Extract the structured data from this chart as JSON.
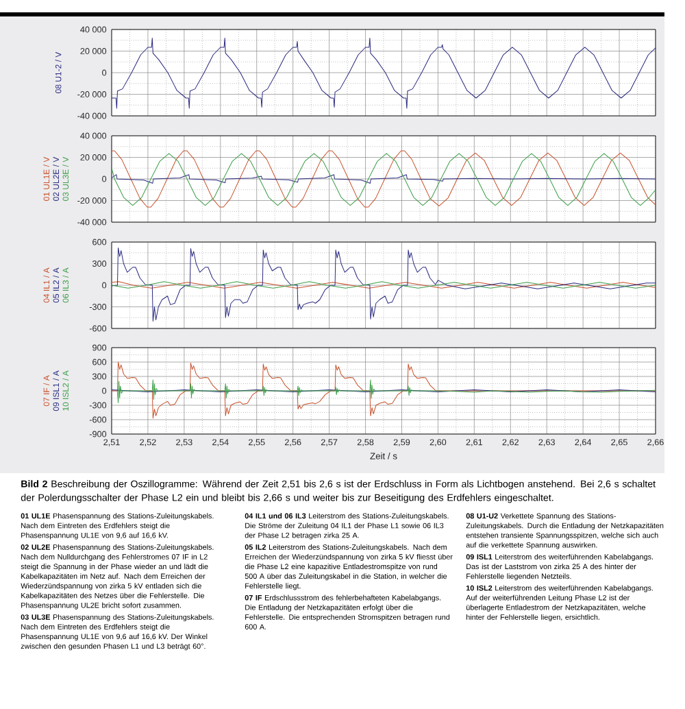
{
  "chart_data": [
    {
      "type": "line",
      "xlim": [
        2.51,
        2.66
      ],
      "ylim": [
        -40000,
        40000
      ],
      "tick_labels": "y",
      "grid": true,
      "xticks": [
        2.51,
        2.52,
        2.53,
        2.54,
        2.55,
        2.56,
        2.57,
        2.58,
        2.59,
        2.6,
        2.61,
        2.62,
        2.63,
        2.64,
        2.65,
        2.66
      ],
      "yticks": [
        {
          "value": -40000,
          "label": "-40 000"
        },
        {
          "value": -20000,
          "label": "-20 000"
        },
        0,
        {
          "value": 20000,
          "label": "20 000"
        },
        {
          "value": 40000,
          "label": "40 000"
        }
      ],
      "series": [
        {
          "name": "08 U1-2 / V",
          "color": "#2a2a80",
          "x": [
            2.51,
            2.5112,
            2.5114,
            2.5116,
            2.513,
            2.5155,
            2.518,
            2.52,
            2.521,
            2.5212,
            2.5214,
            2.523,
            2.5255,
            2.528,
            2.5305,
            2.5312,
            2.5314,
            2.5316,
            2.533,
            2.5355,
            2.538,
            2.54,
            2.541,
            2.5412,
            2.5414,
            2.543,
            2.5455,
            2.548,
            2.5505,
            2.5512,
            2.5514,
            2.5516,
            2.553,
            2.5555,
            2.558,
            2.56,
            2.561,
            2.5612,
            2.5614,
            2.563,
            2.5655,
            2.568,
            2.5705,
            2.5712,
            2.5714,
            2.5716,
            2.573,
            2.5755,
            2.578,
            2.58,
            2.581,
            2.5812,
            2.5814,
            2.583,
            2.5855,
            2.588,
            2.5905,
            2.5912,
            2.5914,
            2.5916,
            2.593,
            2.5955,
            2.598,
            2.6,
            2.601,
            2.6012,
            2.6014,
            2.603,
            2.6055,
            2.608,
            2.6105,
            2.613,
            2.6155,
            2.618,
            2.6205,
            2.623,
            2.6255,
            2.628,
            2.6305,
            2.633,
            2.6355,
            2.638,
            2.6405,
            2.643,
            2.6455,
            2.648,
            2.6505,
            2.653,
            2.6555,
            2.658,
            2.66
          ],
          "values": [
            -23500,
            -23500,
            -33000,
            -17000,
            -15000,
            0,
            16500,
            23500,
            23500,
            32000,
            18000,
            12000,
            0,
            -16500,
            -23500,
            -23500,
            -33000,
            -17000,
            -15000,
            0,
            16500,
            23500,
            23500,
            32000,
            18000,
            12000,
            0,
            -16500,
            -23500,
            -23500,
            -32000,
            -18000,
            -15000,
            0,
            16500,
            23500,
            23500,
            29000,
            20000,
            12000,
            0,
            -16500,
            -23500,
            -23500,
            -32000,
            -18000,
            -15000,
            0,
            16500,
            23500,
            23500,
            32000,
            18000,
            12000,
            0,
            -16500,
            -23500,
            -23500,
            -33000,
            -17000,
            -15000,
            0,
            16500,
            23500,
            23500,
            26000,
            22000,
            16500,
            0,
            -16500,
            -23500,
            -16500,
            0,
            16500,
            23500,
            16500,
            0,
            -16500,
            -23500,
            -16500,
            0,
            16500,
            23500,
            16500,
            0,
            -16500,
            -23500,
            -16500,
            0,
            16500,
            23000
          ]
        }
      ]
    },
    {
      "type": "line",
      "xlim": [
        2.51,
        2.66
      ],
      "ylim": [
        -40000,
        40000
      ],
      "tick_labels": "y",
      "grid": true,
      "xticks": [
        2.51,
        2.52,
        2.53,
        2.54,
        2.55,
        2.56,
        2.57,
        2.58,
        2.59,
        2.6,
        2.61,
        2.62,
        2.63,
        2.64,
        2.65,
        2.66
      ],
      "yticks": [
        {
          "value": -40000,
          "label": "-40 000"
        },
        {
          "value": -20000,
          "label": "-20 000"
        },
        0,
        {
          "value": 20000,
          "label": "20 000"
        },
        {
          "value": 40000,
          "label": "40 000"
        }
      ],
      "series": [
        {
          "name": "01 UL1E / V",
          "color": "#c8502a",
          "x": [
            2.51,
            2.5108,
            2.5128,
            2.5153,
            2.5178,
            2.5198,
            2.5208,
            2.5228,
            2.5253,
            2.5278,
            2.5298,
            2.5308,
            2.5328,
            2.5353,
            2.5378,
            2.5398,
            2.5408,
            2.5428,
            2.5453,
            2.5478,
            2.5498,
            2.5508,
            2.5528,
            2.5553,
            2.5578,
            2.5598,
            2.5608,
            2.5628,
            2.5653,
            2.5678,
            2.5698,
            2.5708,
            2.5728,
            2.5753,
            2.5778,
            2.5798,
            2.5808,
            2.5828,
            2.5853,
            2.5878,
            2.5898,
            2.5908,
            2.5928,
            2.5953,
            2.5978,
            2.6003,
            2.6028,
            2.6053,
            2.6078,
            2.6103,
            2.6128,
            2.6153,
            2.6178,
            2.6203,
            2.6228,
            2.6253,
            2.6278,
            2.6303,
            2.6328,
            2.6353,
            2.6378,
            2.6403,
            2.6428,
            2.6453,
            2.6478,
            2.6503,
            2.6528,
            2.6553,
            2.6578,
            2.66
          ],
          "values": [
            26000,
            26000,
            18000,
            0,
            -18000,
            -26000,
            -26000,
            -18000,
            0,
            18000,
            26000,
            26000,
            18000,
            0,
            -18000,
            -26000,
            -26000,
            -18000,
            0,
            18000,
            26000,
            26000,
            18000,
            0,
            -18000,
            -26000,
            -26000,
            -18000,
            0,
            18000,
            26000,
            26000,
            18000,
            0,
            -18000,
            -26000,
            -26000,
            -18000,
            0,
            18000,
            26000,
            26000,
            18000,
            0,
            -18000,
            -25000,
            -17500,
            0,
            17000,
            24000,
            17000,
            0,
            -17000,
            -24500,
            -17000,
            0,
            17000,
            24000,
            17000,
            0,
            -17000,
            -24500,
            -17000,
            0,
            17000,
            24000,
            17000,
            0,
            -17000,
            -24000
          ]
        },
        {
          "name": "02 UL2E / V",
          "color": "#2a2a80",
          "x": [
            2.51,
            2.5113,
            2.5115,
            2.5188,
            2.5213,
            2.5215,
            2.5288,
            2.5313,
            2.5315,
            2.5388,
            2.5413,
            2.5415,
            2.5488,
            2.5513,
            2.5515,
            2.5588,
            2.5613,
            2.5615,
            2.5688,
            2.5713,
            2.5715,
            2.5788,
            2.5813,
            2.5815,
            2.5888,
            2.5913,
            2.5915,
            2.5988,
            2.6013,
            2.6015,
            2.61,
            2.62,
            2.63,
            2.64,
            2.65,
            2.66
          ],
          "values": [
            1000,
            4000,
            0,
            -1000,
            -4000,
            0,
            1000,
            4000,
            0,
            -1000,
            -3500,
            0,
            800,
            2500,
            0,
            -800,
            -3000,
            0,
            1000,
            4000,
            0,
            -1000,
            -4000,
            0,
            1000,
            4000,
            0,
            -500,
            -2000,
            0,
            500,
            0,
            500,
            0,
            500,
            0
          ]
        },
        {
          "name": "03 UL3E / V",
          "color": "#3c9e48",
          "x": [
            2.51,
            2.5108,
            2.5133,
            2.5158,
            2.5183,
            2.5208,
            2.5233,
            2.5258,
            2.5283,
            2.5308,
            2.5333,
            2.5358,
            2.5383,
            2.5408,
            2.5433,
            2.5458,
            2.5483,
            2.5508,
            2.5533,
            2.5558,
            2.5583,
            2.5608,
            2.5633,
            2.5658,
            2.5683,
            2.5708,
            2.5733,
            2.5758,
            2.5783,
            2.5808,
            2.5833,
            2.5858,
            2.5883,
            2.5908,
            2.5933,
            2.5958,
            2.5983,
            2.6008,
            2.6033,
            2.6058,
            2.6083,
            2.6108,
            2.6133,
            2.6158,
            2.6183,
            2.6208,
            2.6233,
            2.6258,
            2.6283,
            2.6308,
            2.6333,
            2.6358,
            2.6383,
            2.6408,
            2.6433,
            2.6458,
            2.6483,
            2.6508,
            2.6533,
            2.6558,
            2.6583,
            2.66
          ],
          "values": [
            10000,
            0,
            -17000,
            -24500,
            -17000,
            0,
            16500,
            23500,
            16500,
            0,
            -17000,
            -24500,
            -17000,
            0,
            16500,
            23500,
            16500,
            0,
            -17000,
            -24500,
            -17000,
            0,
            16500,
            23500,
            16500,
            0,
            -17000,
            -24500,
            -17000,
            0,
            16500,
            23500,
            16500,
            0,
            -17000,
            -24500,
            -17000,
            0,
            16500,
            23500,
            16500,
            0,
            -17000,
            -24500,
            -17000,
            0,
            16500,
            23500,
            16500,
            0,
            -17000,
            -24500,
            -17000,
            0,
            16500,
            23500,
            16500,
            0,
            -17000,
            -24500,
            -17000,
            -10000
          ]
        }
      ]
    },
    {
      "type": "line",
      "xlim": [
        2.51,
        2.66
      ],
      "ylim": [
        -600,
        600
      ],
      "tick_labels": "y",
      "grid": true,
      "xticks": [
        2.51,
        2.52,
        2.53,
        2.54,
        2.55,
        2.56,
        2.57,
        2.58,
        2.59,
        2.6,
        2.61,
        2.62,
        2.63,
        2.64,
        2.65,
        2.66
      ],
      "yticks": [
        -600,
        -300,
        0,
        300,
        600
      ],
      "series": [
        {
          "name": "04 IL1 / A",
          "color": "#c8502a",
          "x": [
            2.51,
            2.512,
            2.516,
            2.521,
            2.526,
            2.531,
            2.536,
            2.541,
            2.546,
            2.551,
            2.556,
            2.561,
            2.566,
            2.571,
            2.576,
            2.581,
            2.586,
            2.591,
            2.596,
            2.601,
            2.606,
            2.611,
            2.616,
            2.621,
            2.626,
            2.631,
            2.636,
            2.641,
            2.646,
            2.651,
            2.656,
            2.66
          ],
          "values": [
            40,
            50,
            0,
            -40,
            0,
            40,
            0,
            -40,
            0,
            40,
            0,
            -40,
            0,
            40,
            0,
            -40,
            0,
            40,
            0,
            -40,
            0,
            40,
            0,
            -40,
            0,
            40,
            0,
            -40,
            0,
            40,
            0,
            -30
          ]
        },
        {
          "name": "05 IL2 / A",
          "color": "#2a2a80",
          "x": [
            2.51,
            2.5116,
            2.5118,
            2.5122,
            2.5126,
            2.5133,
            2.5143,
            2.5158,
            2.5166,
            2.5178,
            2.5193,
            2.5212,
            2.5214,
            2.5218,
            2.5222,
            2.5229,
            2.5239,
            2.5254,
            2.5262,
            2.5274,
            2.5289,
            2.5304,
            2.5316,
            2.5318,
            2.5322,
            2.5326,
            2.5333,
            2.5343,
            2.5358,
            2.5366,
            2.5378,
            2.5393,
            2.5412,
            2.5414,
            2.5418,
            2.5422,
            2.5429,
            2.5439,
            2.5454,
            2.5462,
            2.5474,
            2.5489,
            2.5504,
            2.5516,
            2.5518,
            2.5522,
            2.5526,
            2.5533,
            2.5543,
            2.5558,
            2.5566,
            2.5578,
            2.5593,
            2.5612,
            2.5614,
            2.5618,
            2.5622,
            2.5629,
            2.5639,
            2.5654,
            2.5662,
            2.5674,
            2.5689,
            2.5704,
            2.5716,
            2.5718,
            2.5722,
            2.5726,
            2.5733,
            2.5743,
            2.5758,
            2.5766,
            2.5778,
            2.5793,
            2.5812,
            2.5814,
            2.5818,
            2.5822,
            2.5829,
            2.5839,
            2.5854,
            2.5862,
            2.5874,
            2.5889,
            2.5904,
            2.5916,
            2.5918,
            2.5922,
            2.5926,
            2.5933,
            2.5943,
            2.5958,
            2.5966,
            2.5978,
            2.5993,
            2.6,
            2.6025,
            2.6075,
            2.6125,
            2.6175,
            2.6225,
            2.6275,
            2.6325,
            2.6375,
            2.6425,
            2.6475,
            2.6525,
            2.6575,
            2.66
          ],
          "values": [
            -10,
            0,
            520,
            400,
            480,
            300,
            180,
            250,
            250,
            100,
            10,
            0,
            -500,
            -300,
            -480,
            -300,
            -200,
            -150,
            -270,
            -250,
            -60,
            0,
            0,
            510,
            400,
            470,
            300,
            180,
            250,
            250,
            100,
            10,
            0,
            -450,
            -300,
            -430,
            -250,
            -200,
            -200,
            -250,
            -230,
            -60,
            0,
            0,
            490,
            380,
            450,
            300,
            200,
            250,
            250,
            100,
            10,
            0,
            -340,
            -260,
            -330,
            -270,
            -250,
            -230,
            -250,
            -200,
            -60,
            0,
            0,
            490,
            380,
            470,
            300,
            180,
            250,
            250,
            100,
            10,
            0,
            -470,
            -300,
            -440,
            -250,
            -200,
            -150,
            -250,
            -230,
            -60,
            0,
            0,
            490,
            380,
            450,
            300,
            180,
            250,
            250,
            100,
            10,
            70,
            0,
            -50,
            -10,
            30,
            -10,
            -50,
            -10,
            30,
            -10,
            -50,
            -10,
            30,
            30
          ]
        },
        {
          "name": "06 IL3 / A",
          "color": "#3c9e48",
          "x": [
            2.51,
            2.5145,
            2.5195,
            2.5245,
            2.5295,
            2.5345,
            2.5395,
            2.5445,
            2.5495,
            2.5545,
            2.5595,
            2.5645,
            2.5695,
            2.5745,
            2.5795,
            2.5845,
            2.5895,
            2.5945,
            2.5995,
            2.6045,
            2.6095,
            2.6145,
            2.6195,
            2.6245,
            2.6295,
            2.6345,
            2.6395,
            2.6445,
            2.6495,
            2.6545,
            2.66
          ],
          "values": [
            0,
            -40,
            0,
            50,
            0,
            -40,
            0,
            50,
            0,
            -40,
            0,
            50,
            0,
            -40,
            0,
            50,
            0,
            -40,
            0,
            40,
            0,
            -40,
            0,
            40,
            0,
            -40,
            0,
            40,
            0,
            -40,
            0
          ]
        }
      ]
    },
    {
      "type": "line",
      "xlim": [
        2.51,
        2.66
      ],
      "ylim": [
        -900,
        900
      ],
      "grid": true,
      "xlabel": "Zeit / s",
      "xticks": [
        {
          "value": 2.51,
          "label": "2,51"
        },
        {
          "value": 2.52,
          "label": "2,52"
        },
        {
          "value": 2.53,
          "label": "2,53"
        },
        {
          "value": 2.54,
          "label": "2,54"
        },
        {
          "value": 2.55,
          "label": "2,55"
        },
        {
          "value": 2.56,
          "label": "2,56"
        },
        {
          "value": 2.57,
          "label": "2,57"
        },
        {
          "value": 2.58,
          "label": "2,58"
        },
        {
          "value": 2.59,
          "label": "2,59"
        },
        {
          "value": 2.6,
          "label": "2,60"
        },
        {
          "value": 2.61,
          "label": "2,61"
        },
        {
          "value": 2.62,
          "label": "2,62"
        },
        {
          "value": 2.63,
          "label": "2,63"
        },
        {
          "value": 2.64,
          "label": "2,64"
        },
        {
          "value": 2.65,
          "label": "2,65"
        },
        {
          "value": 2.66,
          "label": "2,66"
        }
      ],
      "yticks": [
        -900,
        -600,
        -300,
        0,
        300,
        600,
        900
      ],
      "series": [
        {
          "name": "07 IF / A",
          "color": "#c8502a",
          "x": [
            2.51,
            2.5116,
            2.5118,
            2.5122,
            2.5126,
            2.5133,
            2.5143,
            2.5158,
            2.5166,
            2.5178,
            2.5193,
            2.5212,
            2.5214,
            2.5218,
            2.5222,
            2.5229,
            2.5239,
            2.5254,
            2.5262,
            2.5274,
            2.5289,
            2.5304,
            2.5316,
            2.5318,
            2.5322,
            2.5326,
            2.5333,
            2.5343,
            2.5358,
            2.5366,
            2.5378,
            2.5393,
            2.5412,
            2.5414,
            2.5418,
            2.5422,
            2.5429,
            2.5439,
            2.5454,
            2.5462,
            2.5474,
            2.5489,
            2.5504,
            2.5516,
            2.5518,
            2.5522,
            2.5526,
            2.5533,
            2.5543,
            2.5558,
            2.5566,
            2.5578,
            2.5593,
            2.5612,
            2.5614,
            2.5618,
            2.5622,
            2.5629,
            2.5639,
            2.5654,
            2.5662,
            2.5674,
            2.5689,
            2.5704,
            2.5716,
            2.5718,
            2.5722,
            2.5726,
            2.5733,
            2.5743,
            2.5758,
            2.5766,
            2.5778,
            2.5793,
            2.5812,
            2.5814,
            2.5818,
            2.5822,
            2.5829,
            2.5839,
            2.5854,
            2.5862,
            2.5874,
            2.5889,
            2.5904,
            2.5916,
            2.5918,
            2.5922,
            2.5926,
            2.5933,
            2.5943,
            2.5958,
            2.5966,
            2.5978,
            2.5993,
            2.601,
            2.66
          ],
          "values": [
            0,
            0,
            600,
            450,
            540,
            350,
            260,
            280,
            270,
            120,
            10,
            0,
            -570,
            -380,
            -520,
            -350,
            -280,
            -220,
            -300,
            -280,
            -80,
            0,
            0,
            580,
            450,
            520,
            350,
            260,
            280,
            270,
            120,
            10,
            0,
            -520,
            -350,
            -480,
            -300,
            -260,
            -230,
            -280,
            -260,
            -80,
            0,
            0,
            560,
            430,
            500,
            340,
            260,
            280,
            270,
            120,
            10,
            0,
            -380,
            -300,
            -370,
            -290,
            -270,
            -250,
            -270,
            -220,
            -80,
            0,
            0,
            540,
            430,
            500,
            340,
            260,
            280,
            270,
            120,
            10,
            0,
            -520,
            -350,
            -480,
            -300,
            -260,
            -230,
            -280,
            -260,
            -80,
            0,
            0,
            560,
            430,
            500,
            340,
            260,
            280,
            270,
            120,
            10,
            0,
            0
          ]
        },
        {
          "name": "09 ISL1 / A",
          "color": "#2a2a80",
          "x": [
            2.51,
            2.515,
            2.52,
            2.525,
            2.53,
            2.535,
            2.54,
            2.545,
            2.55,
            2.555,
            2.56,
            2.565,
            2.57,
            2.575,
            2.58,
            2.585,
            2.59,
            2.595,
            2.6,
            2.605,
            2.61,
            2.615,
            2.62,
            2.625,
            2.63,
            2.635,
            2.64,
            2.645,
            2.65,
            2.655,
            2.66
          ],
          "values": [
            20,
            0,
            -20,
            0,
            20,
            0,
            -20,
            0,
            20,
            0,
            -20,
            0,
            20,
            0,
            -20,
            0,
            20,
            0,
            -20,
            0,
            20,
            0,
            -20,
            0,
            20,
            0,
            -20,
            0,
            20,
            0,
            -20
          ]
        },
        {
          "name": "10 ISL2 / A",
          "color": "#3c9e48",
          "x": [
            2.5116,
            2.5118,
            2.512,
            2.5122,
            2.5124,
            2.5127,
            2.5131,
            2.5212,
            2.5214,
            2.5216,
            2.5218,
            2.522,
            2.5223,
            2.5227,
            2.5316,
            2.5318,
            2.532,
            2.5322,
            2.5324,
            2.5327,
            2.5331,
            2.5412,
            2.5414,
            2.5416,
            2.5418,
            2.542,
            2.5423,
            2.5427,
            2.5516,
            2.5518,
            2.552,
            2.5522,
            2.5524,
            2.5527,
            2.5531,
            2.5612,
            2.5614,
            2.5616,
            2.5618,
            2.562,
            2.5623,
            2.5627,
            2.5716,
            2.5718,
            2.572,
            2.5722,
            2.5724,
            2.5727,
            2.5731,
            2.5812,
            2.5814,
            2.5816,
            2.5818,
            2.582,
            2.5823,
            2.5827,
            2.5916,
            2.5918,
            2.592,
            2.5922,
            2.5924,
            2.5927,
            2.5931,
            2.6,
            2.605,
            2.61,
            2.615,
            2.62,
            2.625,
            2.63,
            2.635,
            2.64,
            2.645,
            2.65,
            2.655,
            2.66
          ],
          "values": [
            0,
            -250,
            200,
            -150,
            100,
            -50,
            0,
            0,
            230,
            -180,
            150,
            -80,
            50,
            0,
            0,
            150,
            -150,
            100,
            -60,
            30,
            0,
            0,
            150,
            -150,
            100,
            -60,
            30,
            0,
            0,
            100,
            -100,
            70,
            -40,
            20,
            0,
            0,
            100,
            -100,
            70,
            -40,
            20,
            0,
            0,
            80,
            -80,
            50,
            -30,
            20,
            0,
            0,
            230,
            -160,
            120,
            -70,
            40,
            0,
            0,
            100,
            -100,
            70,
            -40,
            20,
            0,
            0,
            -10,
            -30,
            0,
            -10,
            -30,
            -10,
            0,
            -20,
            -30,
            -10,
            0,
            10
          ]
        }
      ],
      "annotations": [
        "**Bild 2** Beschreibung der Oszillogramme: Während der Zeit 2,51 bis 2,6 s ist der Erdschluss in Form als Lichtbogen anstehend. Bei 2,6 s schaltet der Polerdungsschalter der Phase L2 ein und bleibt bis 2,66 s und weiter bis zur Beseitigung des Erdfehlers eingeschaltet.",
        "**01 UL1E** Phasenspannung des Stations-Zuleitungskabels. Nach dem Eintreten des Erdfehlers steigt die Phasenspannung UL1E von 9,6 auf 16,6 kV.",
        "**02 UL2E** Phasenspannung des Stations-Zuleitungskabels. Nach dem Nulldurchgang des Fehlerstromes 07 IF in L2 steigt die Spannung in der Phase wieder an und lädt die Kabelkapazitäten im Netz auf. Nach dem Erreichen der Wiederzündspannung von zirka 5 kV entladen sich die Kabelkapazitäten des Netzes über die Fehlerstelle. Die Phasenspannung UL2E bricht sofort zusammen.",
        "**03 UL3E** Phasenspannung des Stations-Zuleitungskabels. Nach dem Eintreten des Erdfehlers steigt die Phasenspannung UL1E von 9,6 auf 16,6 kV. Der Winkel zwischen den gesunden Phasen L1 und L3 beträgt 60°.",
        "**04 IL1 und 06 IL3** Leiterstrom des Stations-Zuleitungskabels. Die Ströme der Zuleitung 04 IL1 der Phase L1 sowie 06 IL3 der Phase L2 betragen zirka 25 A.",
        "**05 IL2** Leiterstrom des Stations-Zuleitungskabels. Nach dem Erreichen der Wiederzündspannung von zirka 5 kV fliesst über die Phase L2 eine kapazitive Entladestromspitze von rund 500 A über das Zuleitungskabel in die Station, in welcher die Fehlerstelle liegt.",
        "**07 IF** Erdschlussstrom des fehlerbehafteten Kabelabgangs. Die Entladung der Netzkapazitäten erfolgt über die Fehlerstelle. Die entsprechenden Stromspitzen betragen rund 600 A.",
        "**08 U1-U2** Verkettete Spannung des Stations-Zuleitungskabels. Durch die Entladung der Netzkapazitäten entstehen transiente Spannungsspitzen, welche sich auch auf die verkettete Spannung auswirken.",
        "**09 ISL1** Leiterstrom des weiterführenden Kabelabgangs. Das ist der Laststrom von zirka 25 A des hinter der Fehlerstelle liegenden Netzteils.",
        "**10 ISL2** Leiterstrom des weiterführenden Kabelabgangs. Auf der weiterführenden Leitung Phase L2 ist der überlagerte Entladestrom der Netzkapazitäten, welche hinter der Fehlerstelle liegen, ersichtlich."
      ]
    }
  ]
}
